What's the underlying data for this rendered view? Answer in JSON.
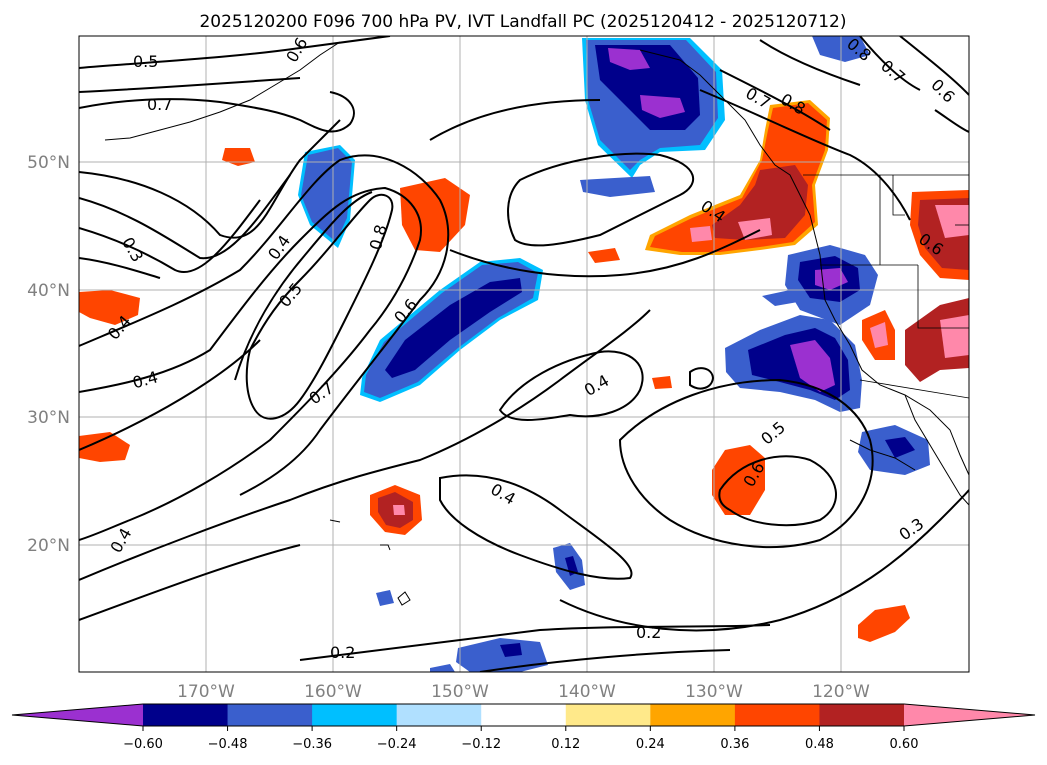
{
  "title": "2025120200 F096 700 hPa PV, IVT Landfall PC (2025120412 - 2025120712)",
  "lat_ticks": [
    "50°N",
    "40°N",
    "30°N",
    "20°N"
  ],
  "lon_ticks": [
    "170°W",
    "160°W",
    "150°W",
    "140°W",
    "130°W",
    "120°W"
  ],
  "colorbar": {
    "ticks": [
      "−0.60",
      "−0.48",
      "−0.36",
      "−0.24",
      "−0.12",
      "0.12",
      "0.24",
      "0.36",
      "0.48",
      "0.60"
    ],
    "colors": [
      "#9b30d0",
      "#00008b",
      "#3a5fcd",
      "#00bfff",
      "#b0e0ff",
      "#ffffff",
      "#ffe98a",
      "#ffa500",
      "#ff4500",
      "#b22222",
      "#ff88aa"
    ]
  },
  "contour_labels": [
    "0.5",
    "0.7",
    "0.6",
    "0.3",
    "0.4",
    "0.5",
    "0.8",
    "0.6",
    "0.4",
    "0.4",
    "0.7",
    "0.4",
    "0.4",
    "0.4",
    "0.2",
    "0.2",
    "0.5",
    "0.6",
    "0.3",
    "0.7",
    "0.8",
    "0.8",
    "0.7",
    "0.6",
    "0.6",
    "0.4"
  ],
  "colors": {
    "purple": "#9b30d0",
    "navy": "#00008b",
    "blue": "#3a5fcd",
    "cyan": "#00bfff",
    "red": "#ff4500",
    "darkred": "#b22222",
    "pink": "#ff88aa",
    "yellow": "#ffe98a",
    "orange": "#ffa500"
  }
}
